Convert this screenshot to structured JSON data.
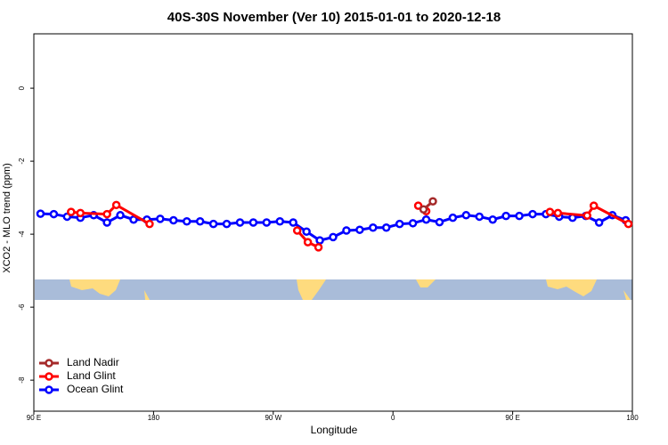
{
  "chart_data": {
    "type": "line",
    "title": "40S-30S November (Ver 10)   2015-01-01 to 2020-12-18",
    "x_label": "Longitude",
    "y_label": "XCO2 - MLO trend (ppm)",
    "xlim": [
      90,
      540
    ],
    "ylim": [
      -8.85,
      1.49
    ],
    "xticks": [
      {
        "value": 90,
        "label": "90 E"
      },
      {
        "value": 180,
        "label": "180"
      },
      {
        "value": 270,
        "label": "90 W"
      },
      {
        "value": 360,
        "label": "0"
      },
      {
        "value": 450,
        "label": "90 E"
      },
      {
        "value": 540,
        "label": "180"
      }
    ],
    "yticks": [
      0,
      -2,
      -4,
      -6,
      -8
    ],
    "legend": "bottom-left",
    "series": [
      {
        "name": "Land Nadir",
        "color": "#a52a2a",
        "x": [
          383,
          390
        ],
        "values": [
          -3.32,
          -3.1
        ]
      },
      {
        "name": "Land Glint",
        "color": "#ff0000",
        "x": [
          118,
          125,
          145,
          152,
          177,
          null,
          288,
          296,
          304,
          null,
          379,
          385,
          null,
          478,
          484,
          506,
          511,
          537
        ],
        "values": [
          -3.39,
          -3.42,
          -3.45,
          -3.2,
          -3.72,
          null,
          -3.9,
          -4.22,
          -4.36,
          null,
          -3.22,
          -3.37,
          null,
          -3.39,
          -3.42,
          -3.49,
          -3.22,
          -3.72
        ]
      },
      {
        "name": "Ocean Glint",
        "color": "#0000ff",
        "x": [
          95,
          105,
          115,
          125,
          135,
          145,
          155,
          165,
          175,
          185,
          195,
          205,
          215,
          225,
          235,
          245,
          255,
          265,
          275,
          285,
          295,
          305,
          315,
          325,
          335,
          345,
          355,
          365,
          375,
          385,
          395,
          405,
          415,
          425,
          435,
          445,
          455,
          465,
          475,
          485,
          495,
          505,
          515,
          525,
          535
        ],
        "values": [
          -3.44,
          -3.45,
          -3.52,
          -3.55,
          -3.48,
          -3.68,
          -3.48,
          -3.6,
          -3.6,
          -3.58,
          -3.62,
          -3.65,
          -3.65,
          -3.72,
          -3.72,
          -3.68,
          -3.68,
          -3.68,
          -3.65,
          -3.68,
          -3.93,
          -4.17,
          -4.08,
          -3.9,
          -3.88,
          -3.82,
          -3.82,
          -3.72,
          -3.7,
          -3.6,
          -3.67,
          -3.55,
          -3.48,
          -3.52,
          -3.6,
          -3.5,
          -3.5,
          -3.45,
          -3.45,
          -3.52,
          -3.55,
          -3.5,
          -3.68,
          -3.48,
          -3.62
        ]
      }
    ]
  }
}
